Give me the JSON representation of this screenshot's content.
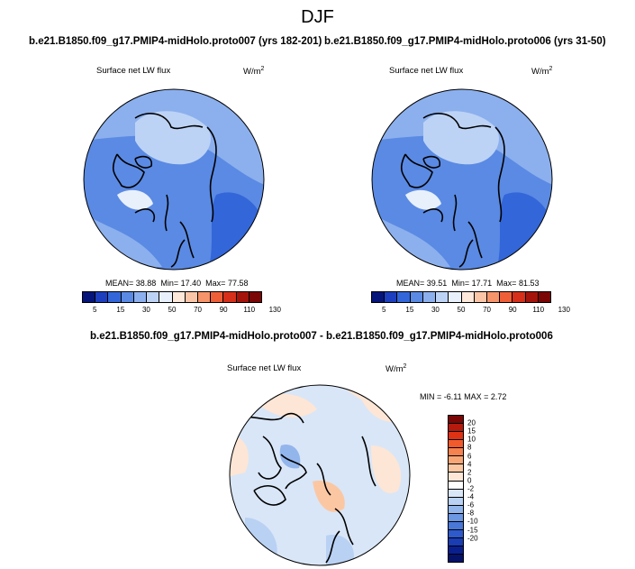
{
  "figure": {
    "title": "DJF",
    "diff_title": "b.e21.B1850.f09_g17.PMIP4-midHolo.proto007 - b.e21.B1850.f09_g17.PMIP4-midHolo.proto006"
  },
  "panels": [
    {
      "title": "b.e21.B1850.f09_g17.PMIP4-midHolo.proto007 (yrs 182-201)",
      "variable": "Surface net LW flux",
      "units": "W/m",
      "units_exp": "2",
      "mean_label": "MEAN=",
      "mean": "38.88",
      "min_label": "Min=",
      "min": "17.40",
      "max_label": "Max=",
      "max": "77.58"
    },
    {
      "title": "b.e21.B1850.f09_g17.PMIP4-midHolo.proto006 (yrs 31-50)",
      "variable": "Surface net LW flux",
      "units": "W/m",
      "units_exp": "2",
      "mean_label": "MEAN=",
      "mean": "39.51",
      "min_label": "Min=",
      "min": "17.71",
      "max_label": "Max=",
      "max": "81.53"
    }
  ],
  "diff_panel": {
    "variable": "Surface net LW flux",
    "units": "W/m",
    "units_exp": "2",
    "stats": "MIN = -6.11 MAX = 2.72"
  },
  "colorbar_main": {
    "colors": [
      "#05157a",
      "#1d3fbf",
      "#3366d9",
      "#5a8ae3",
      "#8cb0ee",
      "#bdd3f5",
      "#e8f0fb",
      "#fde8da",
      "#fbc5a8",
      "#f7946a",
      "#ee5f38",
      "#d6301a",
      "#a5140b",
      "#7a0606"
    ],
    "ticks": [
      "5",
      "15",
      "30",
      "50",
      "70",
      "90",
      "110",
      "130"
    ]
  },
  "colorbar_diff": {
    "colors": [
      "#7a0606",
      "#b51a0d",
      "#df3214",
      "#f25a2c",
      "#f6824f",
      "#f9a676",
      "#fbc7a3",
      "#fde6d5",
      "#ffffff",
      "#d9e6f7",
      "#b9d1f3",
      "#92b6ec",
      "#6c97e3",
      "#4a78d8",
      "#2f5acb",
      "#1a3db3",
      "#0a1f8f",
      "#05126a"
    ],
    "ticks": [
      "20",
      "15",
      "10",
      "8",
      "6",
      "4",
      "2",
      "0",
      "-2",
      "-4",
      "-6",
      "-8",
      "-10",
      "-15",
      "-20"
    ]
  }
}
